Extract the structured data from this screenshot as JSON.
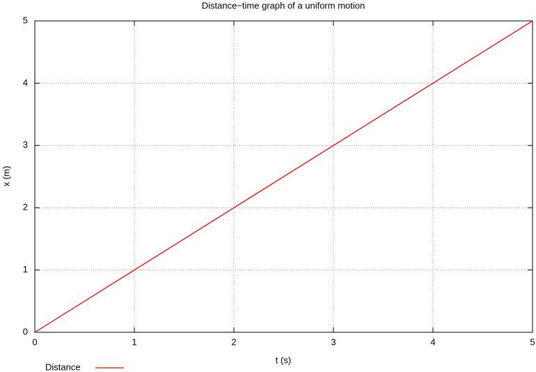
{
  "chart_data": {
    "type": "line",
    "title": "Distance−time graph of a uniform motion",
    "x_label": "t (s)",
    "y_label": "x (m)",
    "x": [
      0,
      1,
      2,
      3,
      4,
      5
    ],
    "series": [
      {
        "name": "Distance",
        "color": "#ff0000",
        "values": [
          0,
          1,
          2,
          3,
          4,
          5
        ]
      }
    ],
    "xlim": [
      0,
      5
    ],
    "xticks": [
      0,
      1,
      2,
      3,
      4,
      5
    ],
    "ylim": [
      0,
      5
    ],
    "yticks": [
      0,
      1,
      2,
      3,
      4,
      5
    ],
    "grid": true,
    "legend": "below-left"
  }
}
